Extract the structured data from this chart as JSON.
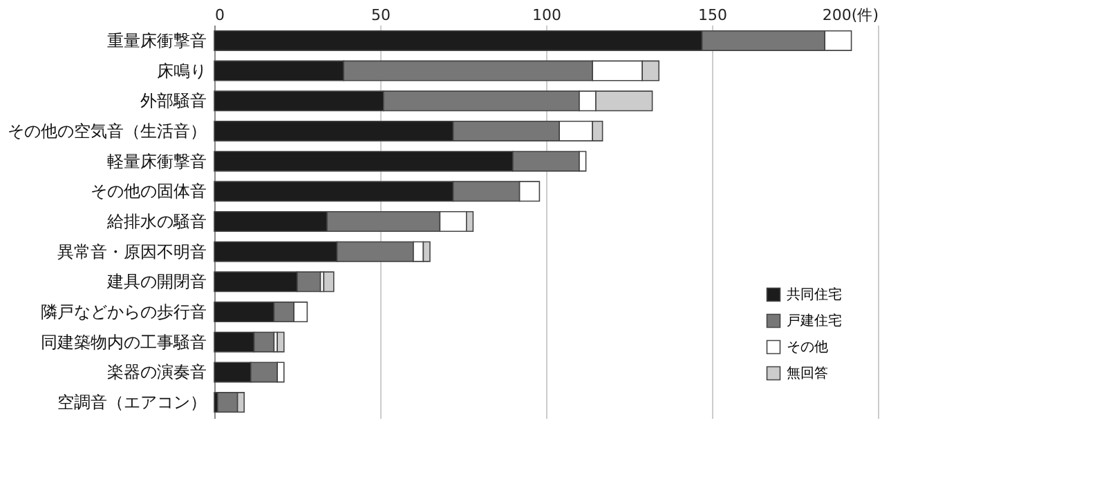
{
  "chart_data": {
    "type": "bar",
    "orientation": "horizontal",
    "stacked": true,
    "categories": [
      "重量床衝撃音",
      "床鳴り",
      "外部騒音",
      "その他の空気音（生活音）",
      "軽量床衝撃音",
      "その他の固体音",
      "給排水の騒音",
      "異常音・原因不明音",
      "建具の開閉音",
      "隣戸などからの歩行音",
      "同建築物内の工事騒音",
      "楽器の演奏音",
      "空調音（エアコン）"
    ],
    "series": [
      {
        "name": "共同住宅",
        "color": "#1c1c1c",
        "values": [
          147,
          39,
          51,
          72,
          90,
          72,
          34,
          37,
          25,
          18,
          12,
          11,
          1
        ]
      },
      {
        "name": "戸建住宅",
        "color": "#777777",
        "values": [
          37,
          75,
          59,
          32,
          20,
          20,
          34,
          23,
          7,
          6,
          6,
          8,
          6
        ]
      },
      {
        "name": "その他",
        "color": "#ffffff",
        "values": [
          8,
          15,
          5,
          10,
          2,
          6,
          8,
          3,
          1,
          4,
          1,
          2,
          0
        ]
      },
      {
        "name": "無回答",
        "color": "#cccccc",
        "values": [
          0,
          5,
          17,
          3,
          0,
          0,
          2,
          2,
          3,
          0,
          2,
          0,
          2
        ]
      }
    ],
    "xlim": [
      0,
      200
    ],
    "xticks": [
      0,
      50,
      100,
      150,
      {
        "value": 200,
        "label": "200(件)"
      }
    ],
    "grid": "x",
    "legend": "bottom right"
  }
}
